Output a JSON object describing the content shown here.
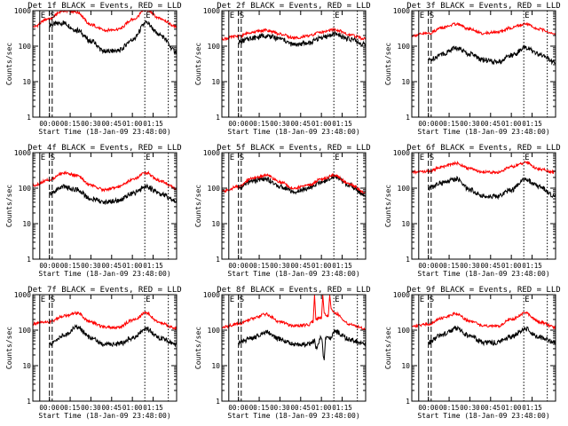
{
  "figure": {
    "ylabel": "Counts/sec",
    "xlabel": "Start Time (18-Jan-09 23:48:00)",
    "colors": {
      "events": "#000000",
      "lld": "#ff0000",
      "background": "#ffffff",
      "axes": "#000000"
    }
  },
  "chart_data": [
    {
      "type": "line",
      "title": "Det 1f BLACK = Events, RED = LLD",
      "xlabel": "Start Time (18-Jan-09 23:48:00)",
      "ylabel": "Counts/sec",
      "xlim": [
        -12,
        92
      ],
      "ylim": [
        1,
        1000
      ],
      "yscale": "log",
      "xticks": [
        "00:00",
        "00:15",
        "00:30",
        "00:45",
        "01:00",
        "01:15"
      ],
      "yticks": [
        "1",
        "10",
        "100",
        "1000"
      ],
      "markers": [
        {
          "x": -7,
          "style": "solid",
          "label": "E"
        },
        {
          "x": 0,
          "style": "dashed",
          "label": "S"
        },
        {
          "x": 2,
          "style": "dashed",
          "label": ""
        },
        {
          "x": 69,
          "style": "dotted",
          "label": "E"
        },
        {
          "x": 86,
          "style": "dotted",
          "label": ""
        }
      ],
      "events_start": 0,
      "series": [
        {
          "name": "Events",
          "x": [
            0,
            10,
            20,
            30,
            40,
            50,
            60,
            70,
            80,
            92
          ],
          "y": [
            400,
            450,
            280,
            140,
            70,
            75,
            150,
            450,
            200,
            70
          ]
        },
        {
          "name": "LLD",
          "x": [
            -12,
            0,
            10,
            20,
            30,
            40,
            50,
            60,
            70,
            80,
            92
          ],
          "y": [
            350,
            600,
            1000,
            900,
            400,
            280,
            300,
            550,
            1050,
            600,
            350
          ]
        }
      ]
    },
    {
      "type": "line",
      "title": "Det 2f BLACK = Events, RED = LLD",
      "xlabel": "Start Time (18-Jan-09 23:48:00)",
      "ylabel": "Counts/sec",
      "xlim": [
        -12,
        92
      ],
      "ylim": [
        1,
        1000
      ],
      "yscale": "log",
      "xticks": [
        "00:00",
        "00:15",
        "00:30",
        "00:45",
        "01:00",
        "01:15"
      ],
      "yticks": [
        "1",
        "10",
        "100",
        "1000"
      ],
      "markers": [
        {
          "x": -7,
          "style": "solid",
          "label": "E"
        },
        {
          "x": 0,
          "style": "dashed",
          "label": "S"
        },
        {
          "x": 2,
          "style": "dashed",
          "label": ""
        },
        {
          "x": 69,
          "style": "dotted",
          "label": "E"
        },
        {
          "x": 86,
          "style": "dotted",
          "label": ""
        }
      ],
      "events_start": 0,
      "series": [
        {
          "name": "Events",
          "x": [
            0,
            10,
            20,
            30,
            40,
            50,
            60,
            70,
            80,
            92
          ],
          "y": [
            130,
            170,
            200,
            160,
            110,
            120,
            170,
            220,
            160,
            110
          ]
        },
        {
          "name": "LLD",
          "x": [
            -12,
            0,
            10,
            20,
            30,
            40,
            50,
            60,
            70,
            80,
            92
          ],
          "y": [
            160,
            190,
            250,
            280,
            220,
            170,
            190,
            250,
            290,
            210,
            160
          ]
        }
      ]
    },
    {
      "type": "line",
      "title": "Det 3f BLACK = Events, RED = LLD",
      "xlabel": "Start Time (18-Jan-09 23:48:00)",
      "ylabel": "Counts/sec",
      "xlim": [
        -12,
        92
      ],
      "ylim": [
        1,
        1000
      ],
      "yscale": "log",
      "xticks": [
        "00:00",
        "00:15",
        "00:30",
        "00:45",
        "01:00",
        "01:15"
      ],
      "yticks": [
        "1",
        "10",
        "100",
        "1000"
      ],
      "markers": [
        {
          "x": -7,
          "style": "solid",
          "label": "E"
        },
        {
          "x": 0,
          "style": "dashed",
          "label": "S"
        },
        {
          "x": 2,
          "style": "dashed",
          "label": ""
        },
        {
          "x": 69,
          "style": "dotted",
          "label": "E"
        },
        {
          "x": 86,
          "style": "dotted",
          "label": ""
        }
      ],
      "events_start": 0,
      "series": [
        {
          "name": "Events",
          "x": [
            0,
            10,
            20,
            30,
            40,
            50,
            60,
            70,
            80,
            92
          ],
          "y": [
            40,
            60,
            90,
            60,
            40,
            35,
            55,
            90,
            60,
            35
          ]
        },
        {
          "name": "LLD",
          "x": [
            -12,
            0,
            10,
            20,
            30,
            40,
            50,
            60,
            70,
            80,
            92
          ],
          "y": [
            200,
            230,
            330,
            420,
            300,
            230,
            250,
            330,
            420,
            300,
            220
          ]
        }
      ]
    },
    {
      "type": "line",
      "title": "Det 4f BLACK = Events, RED = LLD",
      "xlabel": "Start Time (18-Jan-09 23:48:00)",
      "ylabel": "Counts/sec",
      "xlim": [
        -12,
        92
      ],
      "ylim": [
        1,
        1000
      ],
      "yscale": "log",
      "xticks": [
        "00:00",
        "00:15",
        "00:30",
        "00:45",
        "01:00",
        "01:15"
      ],
      "yticks": [
        "1",
        "10",
        "100",
        "1000"
      ],
      "markers": [
        {
          "x": -7,
          "style": "solid",
          "label": "E"
        },
        {
          "x": 0,
          "style": "dashed",
          "label": "S"
        },
        {
          "x": 2,
          "style": "dashed",
          "label": ""
        },
        {
          "x": 69,
          "style": "dotted",
          "label": "E"
        },
        {
          "x": 86,
          "style": "dotted",
          "label": ""
        }
      ],
      "events_start": 0,
      "series": [
        {
          "name": "Events",
          "x": [
            0,
            10,
            20,
            30,
            40,
            50,
            60,
            70,
            80,
            92
          ],
          "y": [
            70,
            110,
            90,
            50,
            40,
            45,
            70,
            110,
            70,
            45
          ]
        },
        {
          "name": "LLD",
          "x": [
            -12,
            0,
            10,
            20,
            30,
            40,
            50,
            60,
            70,
            80,
            92
          ],
          "y": [
            120,
            170,
            270,
            230,
            120,
            90,
            110,
            170,
            270,
            160,
            100
          ]
        }
      ]
    },
    {
      "type": "line",
      "title": "Det 5f BLACK = Events, RED = LLD",
      "xlabel": "Start Time (18-Jan-09 23:48:00)",
      "ylabel": "Counts/sec",
      "xlim": [
        -12,
        92
      ],
      "ylim": [
        1,
        1000
      ],
      "yscale": "log",
      "xticks": [
        "00:00",
        "00:15",
        "00:30",
        "00:45",
        "01:00",
        "01:15"
      ],
      "yticks": [
        "1",
        "10",
        "100",
        "1000"
      ],
      "markers": [
        {
          "x": -7,
          "style": "solid",
          "label": "E"
        },
        {
          "x": 0,
          "style": "dashed",
          "label": "S"
        },
        {
          "x": 2,
          "style": "dashed",
          "label": ""
        },
        {
          "x": 69,
          "style": "dotted",
          "label": "E"
        },
        {
          "x": 86,
          "style": "dotted",
          "label": ""
        }
      ],
      "events_start": 0,
      "series": [
        {
          "name": "Events",
          "x": [
            0,
            10,
            20,
            30,
            40,
            50,
            60,
            70,
            80,
            92
          ],
          "y": [
            100,
            160,
            180,
            110,
            80,
            100,
            150,
            210,
            120,
            65
          ]
        },
        {
          "name": "LLD",
          "x": [
            -12,
            0,
            10,
            20,
            30,
            40,
            50,
            60,
            70,
            80,
            92
          ],
          "y": [
            80,
            110,
            190,
            230,
            150,
            100,
            120,
            180,
            230,
            130,
            75
          ]
        }
      ]
    },
    {
      "type": "line",
      "title": "Det 6f BLACK = Events, RED = LLD",
      "xlabel": "Start Time (18-Jan-09 23:48:00)",
      "ylabel": "Counts/sec",
      "xlim": [
        -12,
        92
      ],
      "ylim": [
        1,
        1000
      ],
      "yscale": "log",
      "xticks": [
        "00:00",
        "00:15",
        "00:30",
        "00:45",
        "01:00",
        "01:15"
      ],
      "yticks": [
        "1",
        "10",
        "100",
        "1000"
      ],
      "markers": [
        {
          "x": -7,
          "style": "solid",
          "label": "E"
        },
        {
          "x": 0,
          "style": "dashed",
          "label": "S"
        },
        {
          "x": 2,
          "style": "dashed",
          "label": ""
        },
        {
          "x": 69,
          "style": "dotted",
          "label": "E"
        },
        {
          "x": 86,
          "style": "dotted",
          "label": ""
        }
      ],
      "events_start": 0,
      "series": [
        {
          "name": "Events",
          "x": [
            0,
            10,
            20,
            30,
            40,
            50,
            60,
            70,
            80,
            92
          ],
          "y": [
            100,
            140,
            180,
            90,
            60,
            60,
            90,
            180,
            110,
            60
          ]
        },
        {
          "name": "LLD",
          "x": [
            -12,
            0,
            10,
            20,
            30,
            40,
            50,
            60,
            70,
            80,
            92
          ],
          "y": [
            280,
            300,
            400,
            500,
            350,
            280,
            280,
            400,
            520,
            350,
            280
          ]
        }
      ]
    },
    {
      "type": "line",
      "title": "Det 7f BLACK = Events, RED = LLD",
      "xlabel": "Start Time (18-Jan-09 23:48:00)",
      "ylabel": "Counts/sec",
      "xlim": [
        -12,
        92
      ],
      "ylim": [
        1,
        1000
      ],
      "yscale": "log",
      "xticks": [
        "00:00",
        "00:15",
        "00:30",
        "00:45",
        "01:00",
        "01:15"
      ],
      "yticks": [
        "1",
        "10",
        "100",
        "1000"
      ],
      "markers": [
        {
          "x": -7,
          "style": "solid",
          "label": "E"
        },
        {
          "x": 0,
          "style": "dashed",
          "label": "S"
        },
        {
          "x": 2,
          "style": "dashed",
          "label": ""
        },
        {
          "x": 69,
          "style": "dotted",
          "label": "E"
        },
        {
          "x": 86,
          "style": "dotted",
          "label": ""
        }
      ],
      "events_start": 0,
      "series": [
        {
          "name": "Events",
          "x": [
            0,
            10,
            20,
            30,
            40,
            50,
            60,
            70,
            80,
            92
          ],
          "y": [
            40,
            70,
            120,
            60,
            40,
            40,
            60,
            110,
            60,
            40
          ]
        },
        {
          "name": "LLD",
          "x": [
            -12,
            0,
            10,
            20,
            30,
            40,
            50,
            60,
            70,
            80,
            92
          ],
          "y": [
            150,
            170,
            250,
            300,
            170,
            120,
            120,
            190,
            300,
            160,
            110
          ]
        }
      ]
    },
    {
      "type": "line",
      "title": "Det 8f BLACK = Events, RED = LLD",
      "xlabel": "Start Time (18-Jan-09 23:48:00)",
      "ylabel": "Counts/sec",
      "xlim": [
        -12,
        92
      ],
      "ylim": [
        1,
        1000
      ],
      "yscale": "log",
      "xticks": [
        "00:00",
        "00:15",
        "00:30",
        "00:45",
        "01:00",
        "01:15"
      ],
      "yticks": [
        "1",
        "10",
        "100",
        "1000"
      ],
      "markers": [
        {
          "x": -7,
          "style": "solid",
          "label": "E"
        },
        {
          "x": 0,
          "style": "dashed",
          "label": "S"
        },
        {
          "x": 2,
          "style": "dashed",
          "label": ""
        },
        {
          "x": 69,
          "style": "dotted",
          "label": "E"
        },
        {
          "x": 86,
          "style": "dotted",
          "label": ""
        }
      ],
      "events_start": 0,
      "series": [
        {
          "name": "Events",
          "x": [
            0,
            10,
            20,
            30,
            40,
            50,
            55,
            56,
            60,
            62,
            63,
            66,
            70,
            80,
            92
          ],
          "y": [
            45,
            60,
            90,
            55,
            40,
            40,
            50,
            30,
            60,
            15,
            60,
            60,
            90,
            55,
            40
          ]
        },
        {
          "name": "LLD",
          "x": [
            -12,
            0,
            10,
            20,
            30,
            40,
            50,
            54,
            55,
            56,
            60,
            61,
            62,
            65,
            66,
            67,
            70,
            80,
            92
          ],
          "y": [
            120,
            150,
            210,
            280,
            170,
            130,
            140,
            170,
            1000,
            200,
            230,
            1000,
            300,
            250,
            1000,
            400,
            300,
            150,
            110
          ]
        }
      ]
    },
    {
      "type": "line",
      "title": "Det 9f BLACK = Events, RED = LLD",
      "xlabel": "Start Time (18-Jan-09 23:48:00)",
      "ylabel": "Counts/sec",
      "xlim": [
        -12,
        92
      ],
      "ylim": [
        1,
        1000
      ],
      "yscale": "log",
      "xticks": [
        "00:00",
        "00:15",
        "00:30",
        "00:45",
        "01:00",
        "01:15"
      ],
      "yticks": [
        "1",
        "10",
        "100",
        "1000"
      ],
      "markers": [
        {
          "x": -7,
          "style": "solid",
          "label": "E"
        },
        {
          "x": 0,
          "style": "dashed",
          "label": "S"
        },
        {
          "x": 2,
          "style": "dashed",
          "label": ""
        },
        {
          "x": 69,
          "style": "dotted",
          "label": "E"
        },
        {
          "x": 86,
          "style": "dotted",
          "label": ""
        }
      ],
      "events_start": 0,
      "series": [
        {
          "name": "Events",
          "x": [
            0,
            10,
            20,
            30,
            40,
            50,
            60,
            70,
            80,
            92
          ],
          "y": [
            45,
            75,
            110,
            70,
            45,
            45,
            65,
            110,
            65,
            45
          ]
        },
        {
          "name": "LLD",
          "x": [
            -12,
            0,
            10,
            20,
            30,
            40,
            50,
            60,
            70,
            80,
            92
          ],
          "y": [
            130,
            150,
            220,
            290,
            180,
            130,
            130,
            200,
            300,
            170,
            120
          ]
        }
      ]
    }
  ]
}
